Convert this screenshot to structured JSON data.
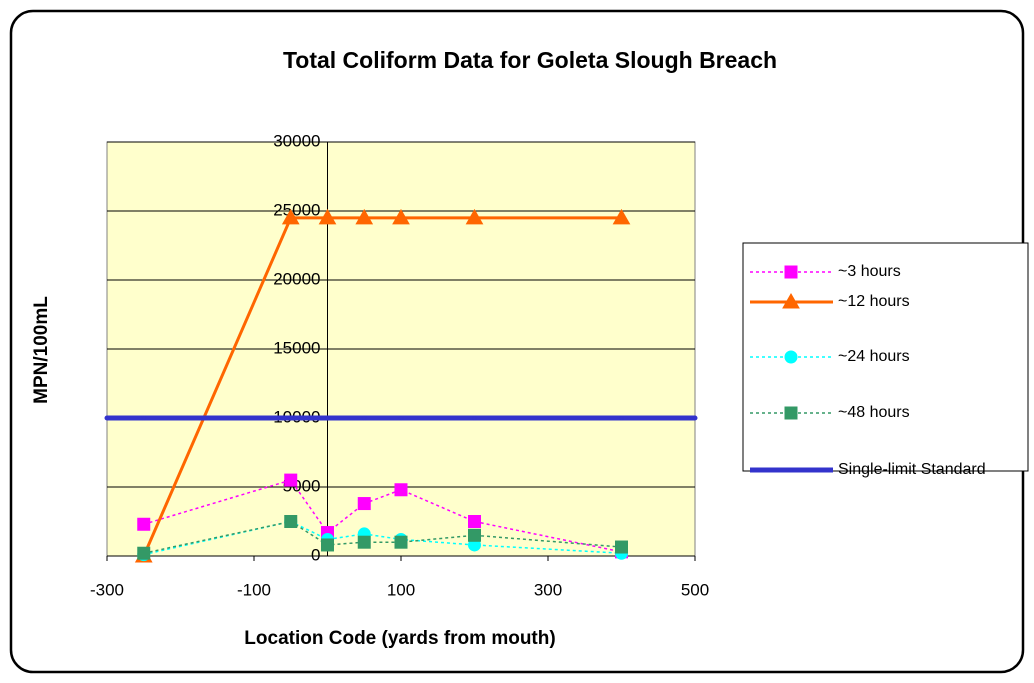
{
  "chart_data": {
    "type": "line",
    "title": "Total Coliform Data for Goleta Slough Breach",
    "x_label": "Location Code (yards from mouth)",
    "y_label": "MPN/100mL",
    "xlim": [
      -300,
      500
    ],
    "xticks": [
      -300,
      -100,
      100,
      300,
      500
    ],
    "ylim": [
      0,
      30000
    ],
    "yticks": [
      0,
      5000,
      10000,
      15000,
      20000,
      25000,
      30000
    ],
    "grid": true,
    "legend": "right",
    "series": [
      {
        "name": "~3 hours",
        "color": "#FF00FF",
        "marker": "square",
        "dashed": true,
        "x": [
          -250,
          -50,
          0,
          50,
          100,
          200,
          400
        ],
        "values": [
          2300,
          5500,
          1700,
          3800,
          4800,
          2500,
          300
        ]
      },
      {
        "name": "~12 hours",
        "color": "#FF6600",
        "marker": "triangle",
        "dashed": false,
        "x": [
          -250,
          -50,
          0,
          50,
          100,
          200,
          400
        ],
        "values": [
          0,
          24500,
          24500,
          24500,
          24500,
          24500,
          24500
        ]
      },
      {
        "name": "~24 hours",
        "color": "#00FFFF",
        "marker": "circle",
        "dashed": true,
        "x": [
          -250,
          -50,
          0,
          50,
          100,
          200,
          400
        ],
        "values": [
          100,
          2500,
          1200,
          1600,
          1200,
          800,
          200
        ]
      },
      {
        "name": "~48 hours",
        "color": "#339966",
        "marker": "square",
        "dashed": true,
        "x": [
          -250,
          -50,
          0,
          50,
          100,
          200,
          400
        ],
        "values": [
          200,
          2500,
          800,
          1000,
          1000,
          1500,
          650
        ]
      },
      {
        "name": "Single-limit Standard",
        "color": "#3333CC",
        "marker": "dot",
        "dashed": false,
        "x": [
          -300,
          -250,
          -50,
          0,
          50,
          100,
          200,
          400,
          500
        ],
        "values": [
          10000,
          10000,
          10000,
          10000,
          10000,
          10000,
          10000,
          10000,
          10000
        ]
      }
    ]
  }
}
